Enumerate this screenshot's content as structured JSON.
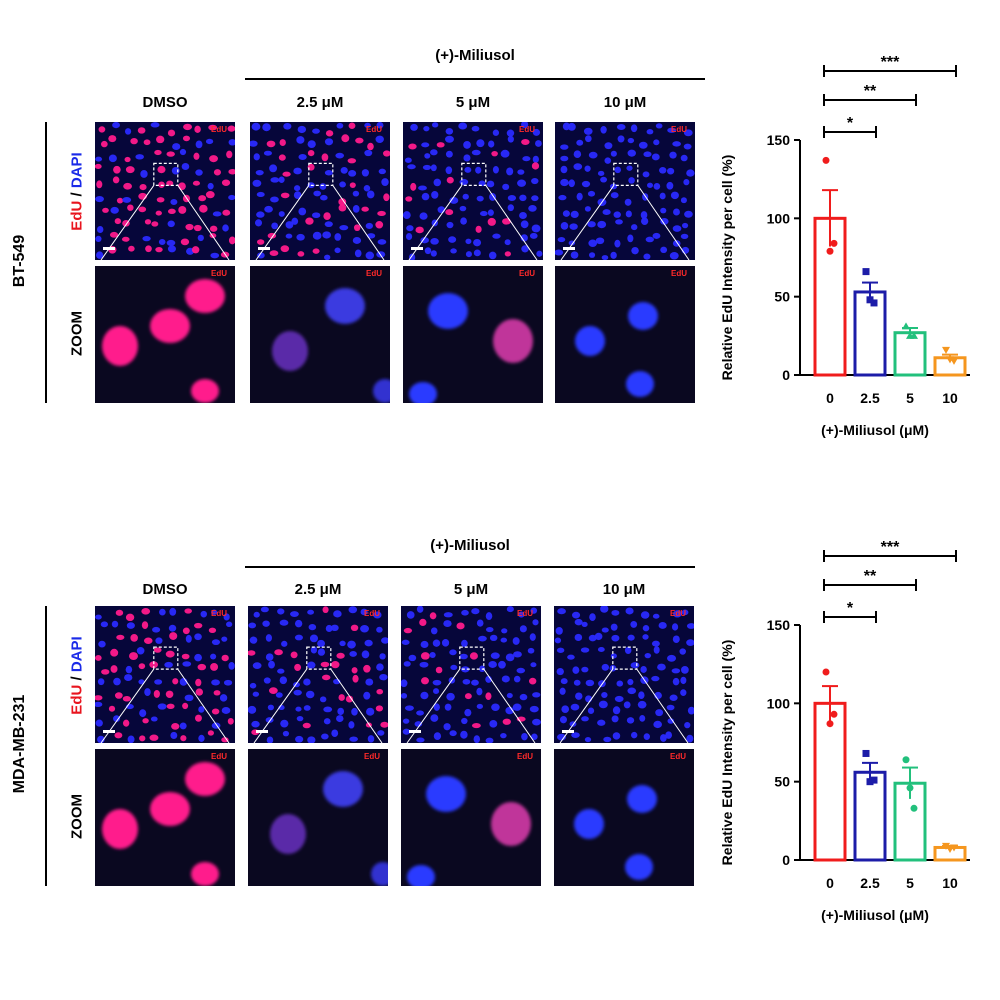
{
  "row1": {
    "cell_line": "BT-549",
    "stain_edu": "EdU",
    "stain_sep": " / ",
    "stain_dapi": "DAPI",
    "zoom_label": "ZOOM",
    "group_label": "(+)-Miliusol",
    "columns": [
      "DMSO",
      "2.5 μM",
      "5 μM",
      "10 μM"
    ],
    "panel_tag": "EdU"
  },
  "row2": {
    "cell_line": "MDA-MB-231",
    "stain_edu": "EdU",
    "stain_sep": " / ",
    "stain_dapi": "DAPI",
    "zoom_label": "ZOOM",
    "group_label": "(+)-Miliusol",
    "columns": [
      "DMSO",
      "2.5 μM",
      "5 μM",
      "10 μM"
    ],
    "panel_tag": "EdU"
  },
  "colors": {
    "red": "#f01c1c",
    "blue": "#1c1ca8",
    "green": "#22c07c",
    "orange": "#f5961e",
    "dapi": "#2a2aff",
    "edu": "#ff1a8c"
  },
  "chart_data": [
    {
      "type": "bar",
      "title": "",
      "xlabel": "(+)-Miliusol (μM)",
      "ylabel": "Relative EdU Intensity per cell (%)",
      "categories": [
        "0",
        "2.5",
        "5",
        "10"
      ],
      "values": [
        100,
        53,
        27,
        11
      ],
      "errors": [
        18,
        6,
        3,
        2
      ],
      "points": [
        [
          137,
          79,
          84
        ],
        [
          66,
          48,
          46
        ],
        [
          31,
          25,
          25
        ],
        [
          16,
          10,
          9
        ]
      ],
      "markers": [
        "circle",
        "square",
        "triangle",
        "triangle-down"
      ],
      "ylim": [
        0,
        150
      ],
      "yticks": [
        0,
        50,
        100,
        150
      ],
      "significance": [
        "*",
        "**",
        "***"
      ],
      "bar_colors": [
        "#f01c1c",
        "#1c1ca8",
        "#22c07c",
        "#f5961e"
      ]
    },
    {
      "type": "bar",
      "title": "",
      "xlabel": "(+)-Miliusol (μM)",
      "ylabel": "Relative EdU Intensity per cell (%)",
      "categories": [
        "0",
        "2.5",
        "5",
        "10"
      ],
      "values": [
        100,
        56,
        49,
        8
      ],
      "errors": [
        11,
        6,
        10,
        1
      ],
      "points": [
        [
          120,
          87,
          93
        ],
        [
          68,
          50,
          51
        ],
        [
          64,
          46,
          33
        ],
        [
          9,
          7,
          8
        ]
      ],
      "markers": [
        "circle",
        "square",
        "circle",
        "triangle-down"
      ],
      "ylim": [
        0,
        150
      ],
      "yticks": [
        0,
        50,
        100,
        150
      ],
      "significance": [
        "*",
        "**",
        "***"
      ],
      "bar_colors": [
        "#f01c1c",
        "#1c1ca8",
        "#22c07c",
        "#f5961e"
      ]
    }
  ]
}
